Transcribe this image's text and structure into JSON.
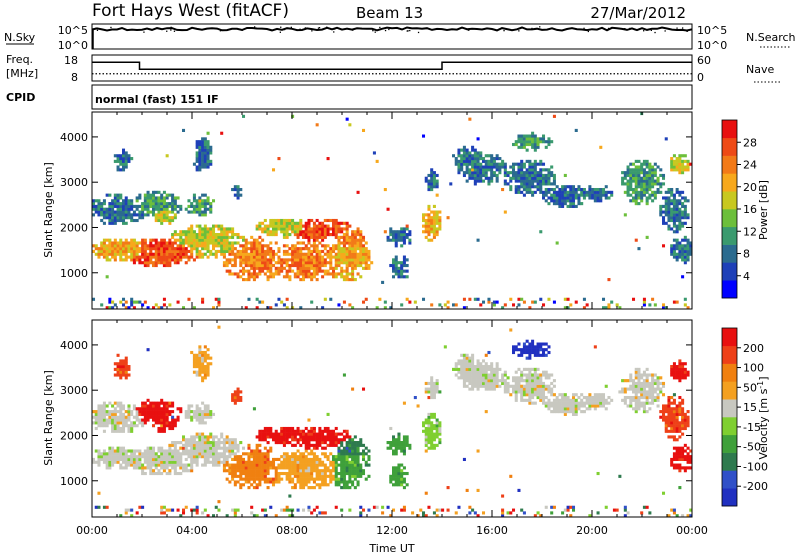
{
  "header": {
    "station": "Fort Hays West (fitACF)",
    "beam": "Beam 13",
    "date": "27/Mar/2012"
  },
  "strip_panels": {
    "nsky": {
      "left_label": "N.Sky",
      "left_ticks": [
        "10^5",
        "10^0"
      ],
      "right_ticks": [
        "10^5",
        "10^0"
      ],
      "right_label": "N.Search",
      "level_fraction": 0.8
    },
    "freq": {
      "left_label_line1": "Freq.",
      "left_label_line2": "[MHz]",
      "left_ticks": [
        "18",
        "8"
      ],
      "right_ticks": [
        "60",
        "0"
      ],
      "right_label": "Nave",
      "steps_hours": [
        0,
        1.9,
        14,
        24
      ],
      "steps_levels": [
        0.72,
        0.45,
        0.72
      ]
    },
    "cpid": {
      "label": "CPID",
      "text": "normal (fast) 151 IF"
    }
  },
  "chart_data": [
    {
      "type": "heatmap",
      "name": "power",
      "ylabel": "Slant Range [km]",
      "yticks": [
        "4000",
        "3000",
        "2000",
        "1000"
      ],
      "ylim": [
        200,
        4550
      ],
      "xlim": [
        0,
        24
      ],
      "colorbar_label": "Power [dB]",
      "colorbar_ticks": [
        "28",
        "24",
        "20",
        "16",
        "12",
        "8",
        "4"
      ],
      "colorbar_colors": [
        "#0000ff",
        "#1e40b8",
        "#2b6b8f",
        "#3a9a6e",
        "#6cbf3b",
        "#c8c820",
        "#f7a81c",
        "#f27a18",
        "#ee4a16",
        "#e81010"
      ]
    },
    {
      "type": "heatmap",
      "name": "velocity",
      "ylabel": "Slant Range [km]",
      "yticks": [
        "4000",
        "3000",
        "2000",
        "1000"
      ],
      "ylim": [
        200,
        4550
      ],
      "xlim": [
        0,
        24
      ],
      "xticks": [
        "00:00",
        "04:00",
        "08:00",
        "12:00",
        "16:00",
        "20:00",
        "00:00"
      ],
      "xlabel": "Time UT",
      "colorbar_label": "Velocity [m s",
      "colorbar_label_sup": "-1",
      "colorbar_label_end": "]",
      "colorbar_ticks": [
        "200",
        "100",
        "50",
        "15",
        "-15",
        "-50",
        "-100",
        "-200"
      ],
      "colorbar_colors": [
        "#2030c0",
        "#3050c8",
        "#2e7a4e",
        "#3fa03a",
        "#7fcf30",
        "#c8c8c0",
        "#f4a020",
        "#f08010",
        "#ee4018",
        "#e81010"
      ]
    }
  ]
}
